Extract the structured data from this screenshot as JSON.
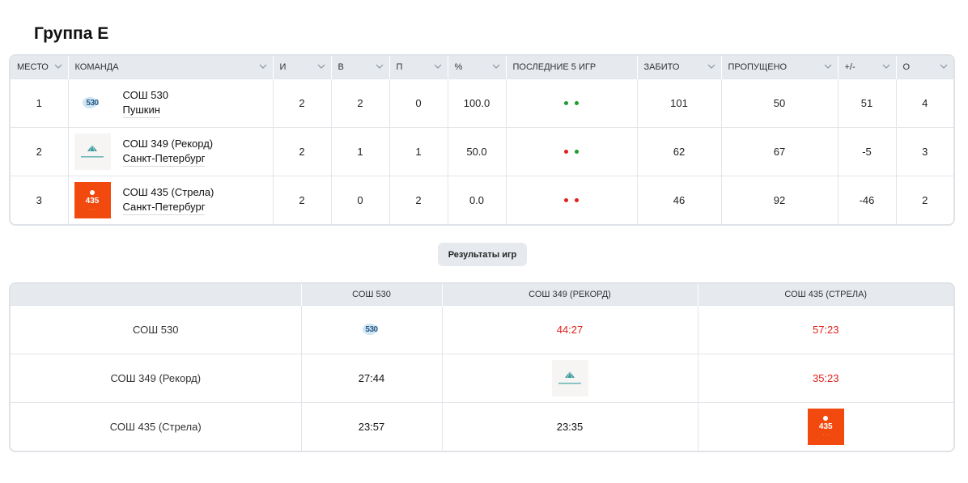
{
  "group": {
    "title": "Группа Е"
  },
  "standings": {
    "headers": [
      "МЕСТО",
      "КОМАНДА",
      "И",
      "В",
      "П",
      "%",
      "ПОСЛЕДНИЕ 5 ИГР",
      "ЗАБИТО",
      "ПРОПУЩЕНО",
      "+/-",
      "О"
    ],
    "rows": [
      {
        "place": "1",
        "team": "СОШ 530",
        "city": "Пушкин",
        "logo": "school-530-logo",
        "games": "2",
        "wins": "2",
        "losses": "0",
        "pct": "100.0",
        "last5": [
          "win",
          "win"
        ],
        "scored": "101",
        "conceded": "50",
        "diff": "51",
        "points": "4"
      },
      {
        "place": "2",
        "team": "СОШ 349 (Рекорд)",
        "city": "Санкт-Петербург",
        "logo": "school-349-logo",
        "games": "2",
        "wins": "1",
        "losses": "1",
        "pct": "50.0",
        "last5": [
          "loss",
          "win"
        ],
        "scored": "62",
        "conceded": "67",
        "diff": "-5",
        "points": "3"
      },
      {
        "place": "3",
        "team": "СОШ 435 (Стрела)",
        "city": "Санкт-Петербург",
        "logo": "school-435-logo",
        "games": "2",
        "wins": "0",
        "losses": "2",
        "pct": "0.0",
        "last5": [
          "loss",
          "loss"
        ],
        "scored": "46",
        "conceded": "92",
        "diff": "-46",
        "points": "2"
      }
    ]
  },
  "results_button": {
    "label": "Результаты игр"
  },
  "results": {
    "headers": [
      "",
      "СОШ 530",
      "СОШ 349 (РЕКОРД)",
      "СОШ 435 (СТРЕЛА)"
    ],
    "rows": [
      {
        "team": "СОШ 530",
        "cells": [
          "",
          "44:27",
          "57:23"
        ]
      },
      {
        "team": "СОШ 349 (Рекорд)",
        "cells": [
          "27:44",
          "",
          "35:23"
        ]
      },
      {
        "team": "СОШ 435 (Стрела)",
        "cells": [
          "23:57",
          "23:35",
          ""
        ]
      }
    ]
  },
  "logos": {
    "s530": "530",
    "s435": "435"
  },
  "colors": {
    "win": "#1e9c2e",
    "loss": "#e0201b",
    "header_bg": "#e6eaef",
    "logo_435_bg": "#f2490e"
  }
}
